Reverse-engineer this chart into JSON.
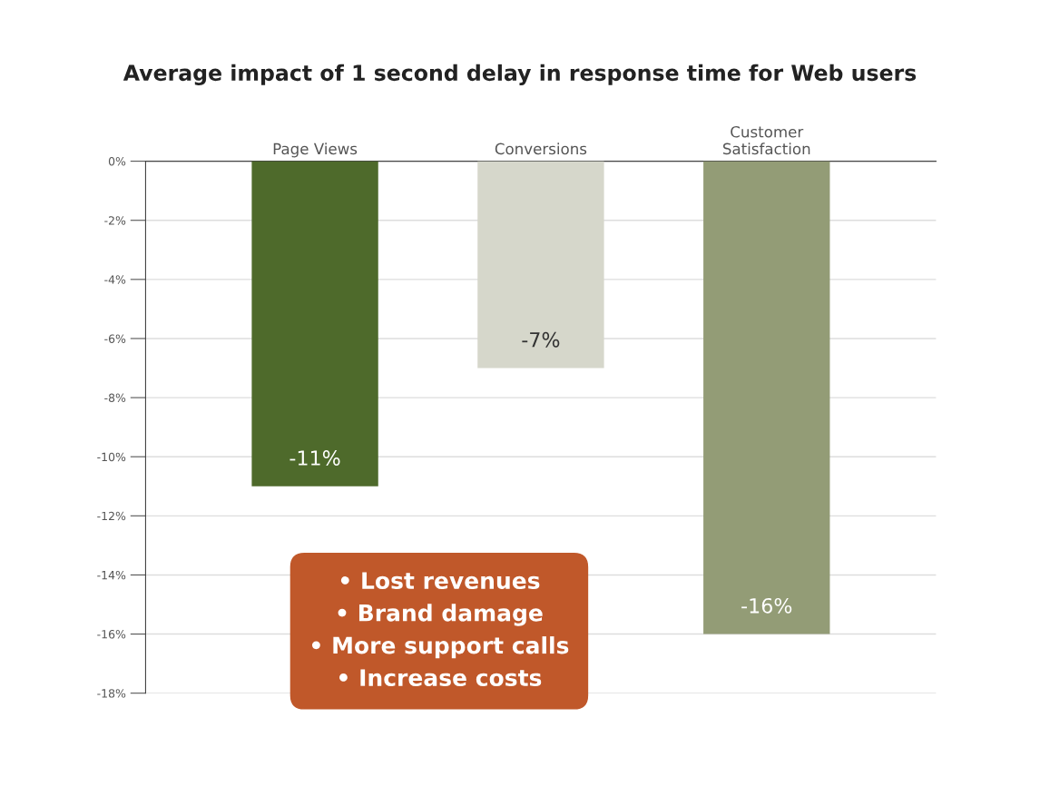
{
  "chart_data": {
    "type": "bar",
    "title": "Average impact of 1 second delay in response time for Web users",
    "categories": [
      "Page Views",
      "Conversions",
      "Customer Satisfaction"
    ],
    "values": [
      -11,
      -7,
      -16
    ],
    "colors": [
      "#4e6a2b",
      "#d6d7cb",
      "#939c76"
    ],
    "data_labels": true,
    "value_labels": [
      "-11%",
      "-7%",
      "-16%"
    ],
    "ylim": [
      -18,
      0
    ],
    "yticks": [
      {
        "value": 0,
        "label": "0%"
      },
      {
        "value": -2,
        "label": "-2%"
      },
      {
        "value": -4,
        "label": "-4%"
      },
      {
        "value": -6,
        "label": "-6%"
      },
      {
        "value": -8,
        "label": "-8%"
      },
      {
        "value": -10,
        "label": "-10%"
      },
      {
        "value": -12,
        "label": "-12%"
      },
      {
        "value": -14,
        "label": "-14%"
      },
      {
        "value": -16,
        "label": "-16%"
      },
      {
        "value": -18,
        "label": "-18%"
      }
    ],
    "grid": "y",
    "annotations": [
      "• Lost revenues",
      "• Brand damage",
      "• More support calls",
      "• Increase costs"
    ]
  }
}
